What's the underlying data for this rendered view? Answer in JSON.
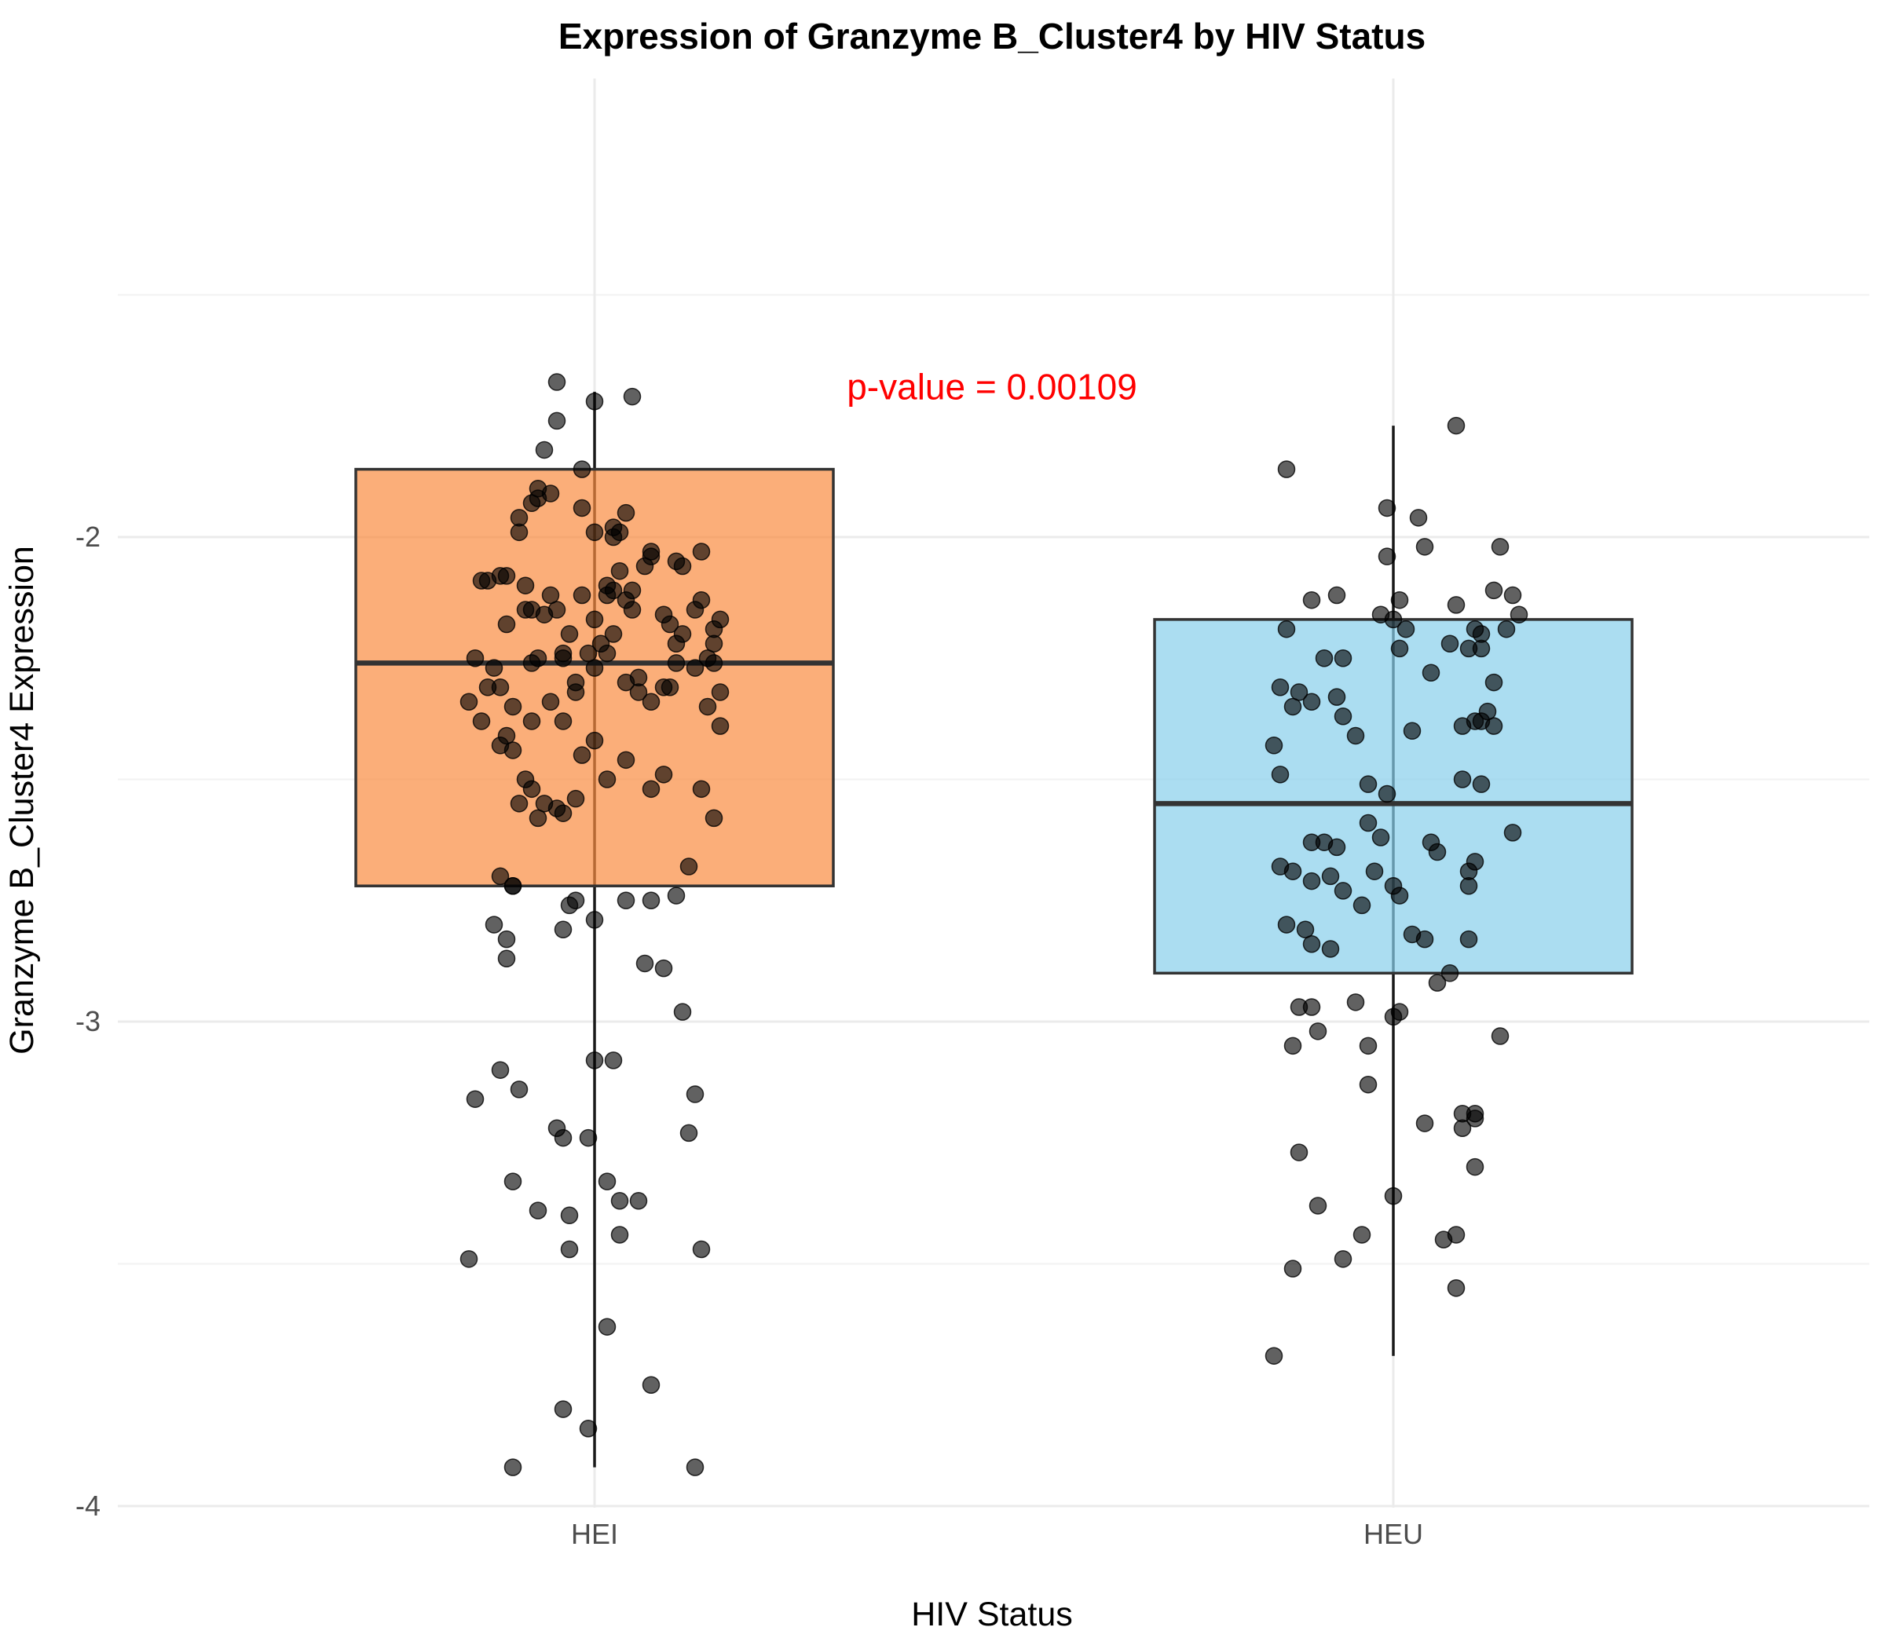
{
  "chart_data": {
    "type": "boxplot",
    "title": "Expression of Granzyme B_Cluster4 by HIV Status",
    "xlabel": "HIV Status",
    "ylabel": "Granzyme B_Cluster4 Expression",
    "ylim": [
      -4.05,
      -1.45
    ],
    "yticks": [
      -4,
      -3,
      -2
    ],
    "grid": true,
    "legend": "none",
    "annotation": {
      "text": "p-value = 0.00109",
      "color": "#ff0000",
      "y": -1.69
    },
    "categories": [
      "HEI",
      "HEU"
    ],
    "series": [
      {
        "name": "HEI",
        "color": "#f98c40",
        "box": {
          "whisker_low": -3.92,
          "q1": -2.72,
          "median": -2.26,
          "q3": -1.86,
          "whisker_high": -1.7
        },
        "points": [
          [
            -0.06,
            -1.68
          ],
          [
            -0.06,
            -1.76
          ],
          [
            0.06,
            -1.71
          ],
          [
            0.0,
            -1.72
          ],
          [
            -0.08,
            -1.82
          ],
          [
            -0.02,
            -1.94
          ],
          [
            -0.12,
            -1.96
          ],
          [
            0.03,
            -1.98
          ],
          [
            0.05,
            -1.95
          ],
          [
            0.04,
            -1.99
          ],
          [
            0.09,
            -2.03
          ],
          [
            -0.18,
            -2.09
          ],
          [
            -0.17,
            -2.09
          ],
          [
            -0.15,
            -2.08
          ],
          [
            0.17,
            -2.03
          ],
          [
            0.09,
            -2.04
          ],
          [
            -0.1,
            -2.15
          ],
          [
            -0.06,
            -2.15
          ],
          [
            0.0,
            -2.17
          ],
          [
            0.06,
            -2.15
          ],
          [
            0.11,
            -2.16
          ],
          [
            0.14,
            -2.2
          ],
          [
            0.2,
            -2.17
          ],
          [
            0.19,
            -2.19
          ],
          [
            0.01,
            -2.22
          ],
          [
            -0.16,
            -2.27
          ],
          [
            -0.1,
            -2.26
          ],
          [
            -0.09,
            -2.25
          ],
          [
            0.02,
            -2.24
          ],
          [
            0.13,
            -2.26
          ],
          [
            0.07,
            -2.29
          ],
          [
            0.05,
            -2.3
          ],
          [
            0.18,
            -2.25
          ],
          [
            0.16,
            -2.27
          ],
          [
            -0.03,
            -2.32
          ],
          [
            -0.02,
            -1.86
          ],
          [
            -0.18,
            -2.38
          ],
          [
            -0.14,
            -2.41
          ],
          [
            -0.09,
            -1.92
          ],
          [
            -0.12,
            -1.99
          ],
          [
            -0.1,
            -1.93
          ],
          [
            -0.09,
            -1.9
          ],
          [
            -0.07,
            -1.91
          ],
          [
            0.03,
            -2.0
          ],
          [
            0.0,
            -1.99
          ],
          [
            0.04,
            -2.07
          ],
          [
            -0.14,
            -2.08
          ],
          [
            0.08,
            -2.06
          ],
          [
            0.14,
            -2.06
          ],
          [
            0.02,
            -2.12
          ],
          [
            -0.07,
            -2.12
          ],
          [
            -0.11,
            -2.15
          ],
          [
            0.06,
            -2.11
          ],
          [
            0.05,
            -2.13
          ],
          [
            0.03,
            -2.11
          ],
          [
            -0.02,
            -2.12
          ],
          [
            -0.11,
            -2.1
          ],
          [
            0.13,
            -2.05
          ],
          [
            0.17,
            -2.13
          ],
          [
            0.16,
            -2.15
          ],
          [
            0.19,
            -2.22
          ],
          [
            0.12,
            -2.18
          ],
          [
            0.02,
            -2.1
          ],
          [
            -0.08,
            -2.16
          ],
          [
            -0.14,
            -2.18
          ],
          [
            -0.05,
            -2.24
          ],
          [
            0.03,
            -2.2
          ],
          [
            -0.04,
            -2.2
          ],
          [
            -0.01,
            -2.24
          ],
          [
            -0.19,
            -2.25
          ],
          [
            -0.15,
            -2.31
          ],
          [
            -0.13,
            -2.35
          ],
          [
            -0.07,
            -2.34
          ],
          [
            -0.05,
            -2.25
          ],
          [
            0.13,
            -2.22
          ],
          [
            0.19,
            -2.26
          ],
          [
            0.2,
            -2.32
          ],
          [
            -0.2,
            -2.34
          ],
          [
            -0.17,
            -2.31
          ],
          [
            -0.1,
            -2.38
          ],
          [
            -0.05,
            -2.38
          ],
          [
            0.07,
            -2.32
          ],
          [
            0.12,
            -2.31
          ],
          [
            0.11,
            -2.31
          ],
          [
            -0.03,
            -2.3
          ],
          [
            0.0,
            -2.27
          ],
          [
            -0.15,
            -2.43
          ],
          [
            -0.13,
            -2.44
          ],
          [
            -0.11,
            -2.5
          ],
          [
            -0.1,
            -2.52
          ],
          [
            -0.02,
            -2.45
          ],
          [
            0.0,
            -2.42
          ],
          [
            0.05,
            -2.46
          ],
          [
            0.09,
            -2.34
          ],
          [
            0.18,
            -2.35
          ],
          [
            0.2,
            -2.39
          ],
          [
            -0.12,
            -2.55
          ],
          [
            -0.08,
            -2.55
          ],
          [
            -0.06,
            -2.56
          ],
          [
            -0.03,
            -2.54
          ],
          [
            -0.09,
            -2.58
          ],
          [
            -0.05,
            -2.57
          ],
          [
            0.02,
            -2.5
          ],
          [
            0.09,
            -2.52
          ],
          [
            0.11,
            -2.49
          ],
          [
            0.17,
            -2.52
          ],
          [
            0.19,
            -2.58
          ],
          [
            -0.15,
            -2.7
          ],
          [
            -0.13,
            -2.72
          ],
          [
            -0.13,
            -2.72
          ],
          [
            -0.04,
            -2.76
          ],
          [
            -0.03,
            -2.75
          ],
          [
            0.05,
            -2.75
          ],
          [
            0.09,
            -2.75
          ],
          [
            0.13,
            -2.74
          ],
          [
            0.15,
            -2.68
          ],
          [
            -0.16,
            -2.8
          ],
          [
            -0.14,
            -2.83
          ],
          [
            -0.05,
            -2.81
          ],
          [
            0.0,
            -2.79
          ],
          [
            -0.14,
            -2.87
          ],
          [
            0.08,
            -2.88
          ],
          [
            0.11,
            -2.89
          ],
          [
            0.14,
            -2.98
          ],
          [
            -0.19,
            -3.16
          ],
          [
            -0.15,
            -3.1
          ],
          [
            -0.12,
            -3.14
          ],
          [
            -0.06,
            -3.22
          ],
          [
            -0.05,
            -3.24
          ],
          [
            0.0,
            -3.08
          ],
          [
            -0.01,
            -3.24
          ],
          [
            0.03,
            -3.08
          ],
          [
            0.16,
            -3.15
          ],
          [
            0.15,
            -3.23
          ],
          [
            -0.13,
            -3.33
          ],
          [
            -0.09,
            -3.39
          ],
          [
            -0.04,
            -3.4
          ],
          [
            0.02,
            -3.33
          ],
          [
            0.04,
            -3.37
          ],
          [
            0.07,
            -3.37
          ],
          [
            0.04,
            -3.44
          ],
          [
            -0.2,
            -3.49
          ],
          [
            -0.04,
            -3.47
          ],
          [
            0.17,
            -3.47
          ],
          [
            0.02,
            -3.63
          ],
          [
            0.09,
            -3.75
          ],
          [
            -0.05,
            -3.8
          ],
          [
            -0.01,
            -3.84
          ],
          [
            -0.13,
            -3.92
          ],
          [
            0.16,
            -3.92
          ]
        ]
      },
      {
        "name": "HEU",
        "color": "#87ceeb",
        "box": {
          "whisker_low": -3.69,
          "q1": -2.9,
          "median": -2.55,
          "q3": -2.17,
          "whisker_high": -1.77
        },
        "points": [
          [
            0.1,
            -1.77
          ],
          [
            -0.17,
            -1.86
          ],
          [
            -0.01,
            -1.94
          ],
          [
            0.05,
            -2.02
          ],
          [
            0.04,
            -1.96
          ],
          [
            -0.13,
            -2.13
          ],
          [
            0.0,
            -2.17
          ],
          [
            0.09,
            -2.22
          ],
          [
            0.01,
            -2.23
          ],
          [
            -0.08,
            -2.25
          ],
          [
            -0.15,
            -2.32
          ],
          [
            -0.18,
            -2.31
          ],
          [
            -0.13,
            -2.34
          ],
          [
            -0.09,
            -2.33
          ],
          [
            0.15,
            -2.36
          ],
          [
            0.16,
            -2.39
          ],
          [
            -0.19,
            -2.43
          ],
          [
            -0.08,
            -2.37
          ],
          [
            -0.06,
            -2.41
          ],
          [
            0.13,
            -2.38
          ],
          [
            0.11,
            -2.39
          ],
          [
            0.17,
            -2.02
          ],
          [
            0.14,
            -2.38
          ],
          [
            -0.04,
            -2.51
          ],
          [
            0.14,
            -2.51
          ],
          [
            0.11,
            -2.5
          ],
          [
            -0.01,
            -2.04
          ],
          [
            0.16,
            -2.11
          ],
          [
            -0.18,
            -2.49
          ],
          [
            0.19,
            -2.12
          ],
          [
            -0.09,
            -2.12
          ],
          [
            0.01,
            -2.13
          ],
          [
            -0.17,
            -2.19
          ],
          [
            0.2,
            -2.16
          ],
          [
            0.02,
            -2.19
          ],
          [
            -0.02,
            -2.16
          ],
          [
            0.13,
            -2.19
          ],
          [
            0.18,
            -2.19
          ],
          [
            0.1,
            -2.14
          ],
          [
            0.14,
            -2.2
          ],
          [
            0.12,
            -2.23
          ],
          [
            0.16,
            -2.3
          ],
          [
            -0.16,
            -2.35
          ],
          [
            -0.11,
            -2.25
          ],
          [
            0.06,
            -2.28
          ],
          [
            0.03,
            -2.4
          ],
          [
            0.14,
            -2.23
          ],
          [
            -0.01,
            -2.53
          ],
          [
            0.06,
            -2.63
          ],
          [
            0.07,
            -2.65
          ],
          [
            -0.02,
            -2.62
          ],
          [
            -0.11,
            -2.63
          ],
          [
            -0.18,
            -2.68
          ],
          [
            -0.16,
            -2.69
          ],
          [
            -0.09,
            -2.64
          ],
          [
            -0.13,
            -2.71
          ],
          [
            -0.1,
            -2.7
          ],
          [
            -0.03,
            -2.69
          ],
          [
            0.0,
            -2.72
          ],
          [
            0.13,
            -2.67
          ],
          [
            0.12,
            -2.69
          ],
          [
            0.12,
            -2.72
          ],
          [
            0.19,
            -2.61
          ],
          [
            -0.17,
            -2.8
          ],
          [
            -0.14,
            -2.81
          ],
          [
            -0.13,
            -2.84
          ],
          [
            -0.1,
            -2.85
          ],
          [
            0.05,
            -2.83
          ],
          [
            0.03,
            -2.82
          ],
          [
            -0.05,
            -2.76
          ],
          [
            0.01,
            -2.74
          ],
          [
            0.12,
            -2.83
          ],
          [
            0.09,
            -2.9
          ],
          [
            0.07,
            -2.92
          ],
          [
            -0.06,
            -2.96
          ],
          [
            -0.13,
            -2.97
          ],
          [
            -0.15,
            -2.97
          ],
          [
            -0.12,
            -3.02
          ],
          [
            0.0,
            -2.99
          ],
          [
            0.01,
            -2.98
          ],
          [
            0.17,
            -3.03
          ],
          [
            0.13,
            -3.19
          ],
          [
            -0.16,
            -3.05
          ],
          [
            -0.04,
            -3.05
          ],
          [
            -0.15,
            -3.27
          ],
          [
            -0.04,
            -3.13
          ],
          [
            0.05,
            -3.21
          ],
          [
            0.13,
            -3.2
          ],
          [
            0.11,
            -3.22
          ],
          [
            0.13,
            -3.3
          ],
          [
            -0.12,
            -3.38
          ],
          [
            -0.05,
            -3.44
          ],
          [
            0.0,
            -3.36
          ],
          [
            0.1,
            -3.44
          ],
          [
            -0.16,
            -3.51
          ],
          [
            0.1,
            -3.55
          ],
          [
            -0.19,
            -3.69
          ],
          [
            -0.08,
            -3.49
          ],
          [
            0.08,
            -3.45
          ],
          [
            0.11,
            -3.19
          ],
          [
            -0.04,
            -2.59
          ],
          [
            -0.13,
            -2.63
          ],
          [
            -0.08,
            -2.73
          ]
        ]
      }
    ]
  }
}
